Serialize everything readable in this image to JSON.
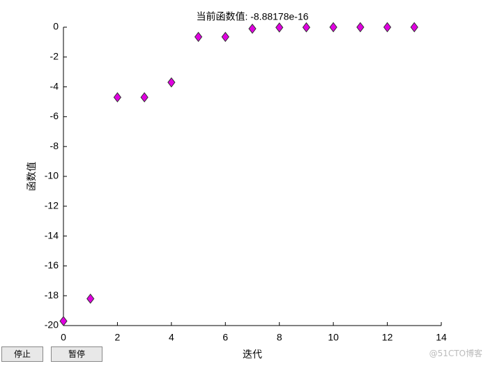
{
  "chart_data": {
    "type": "scatter",
    "title": "当前函数值: -8.88178e-16",
    "x_label": "迭代",
    "y_label": "函数值",
    "x": [
      0,
      1,
      2,
      3,
      4,
      5,
      6,
      7,
      8,
      9,
      10,
      11,
      12,
      13
    ],
    "values": [
      -19.7,
      -18.2,
      -4.7,
      -4.7,
      -3.7,
      -0.65,
      -0.65,
      -0.1,
      -0.02,
      -0.01,
      0,
      0,
      0,
      0
    ],
    "color": "#e000e0",
    "xlim": [
      0,
      14
    ],
    "xticks": [
      0,
      2,
      4,
      6,
      8,
      10,
      12,
      14
    ],
    "ylim": [
      -20,
      0
    ],
    "yticks": [
      0,
      -2,
      -4,
      -6,
      -8,
      -10,
      -12,
      -14,
      -16,
      -18,
      -20
    ],
    "grid": false
  },
  "buttons": [
    "停止",
    "暂停"
  ],
  "watermark": "@51CTO博客"
}
